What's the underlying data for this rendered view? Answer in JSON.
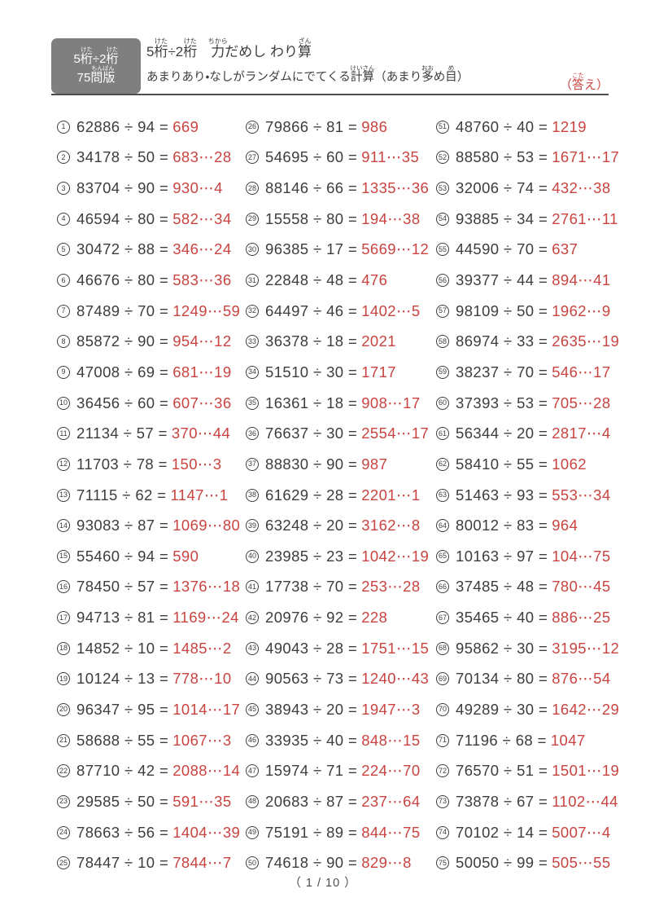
{
  "colors": {
    "answer_red": "#c94441",
    "text_dark": "#3d3d3d",
    "badge_gray": "#7f7f7f",
    "rule_gray": "#4d4d4d"
  },
  "signs": {
    "divide": "÷",
    "equals": "=",
    "remainder": "⋯"
  },
  "header": {
    "badge": {
      "line1_segments": [
        {
          "t": "5"
        },
        {
          "t": "桁",
          "r": "けた"
        },
        {
          "t": "÷2"
        },
        {
          "t": "桁",
          "r": "けた"
        }
      ],
      "line2_segments": [
        {
          "t": "75"
        },
        {
          "t": "問版",
          "r": "もんばん"
        }
      ]
    },
    "title_segments": [
      {
        "t": "5"
      },
      {
        "t": "桁",
        "r": "けた"
      },
      {
        "t": "÷2"
      },
      {
        "t": "桁",
        "r": "けた"
      },
      {
        "t": "　"
      },
      {
        "t": "力",
        "r": "ちから"
      },
      {
        "t": "だめし わり"
      },
      {
        "t": "算",
        "r": "ざん"
      }
    ],
    "subtitle_segments": [
      {
        "t": "あまりあり・なしがランダムにでてくる"
      },
      {
        "t": "計算",
        "r": "けいさん"
      },
      {
        "t": "（あまり"
      },
      {
        "t": "多",
        "r": "おお"
      },
      {
        "t": "め"
      },
      {
        "t": "目",
        "r": "め"
      },
      {
        "t": "）"
      }
    ],
    "answer_label_segments": [
      {
        "t": "（"
      },
      {
        "t": "答",
        "r": "こた"
      },
      {
        "t": "え）"
      }
    ]
  },
  "page": {
    "footer": "（ 1 / 10 ）"
  },
  "problems": [
    {
      "n": 1,
      "a": "62886",
      "b": "94",
      "q": "669",
      "r": null
    },
    {
      "n": 2,
      "a": "34178",
      "b": "50",
      "q": "683",
      "r": "28"
    },
    {
      "n": 3,
      "a": "83704",
      "b": "90",
      "q": "930",
      "r": "4"
    },
    {
      "n": 4,
      "a": "46594",
      "b": "80",
      "q": "582",
      "r": "34"
    },
    {
      "n": 5,
      "a": "30472",
      "b": "88",
      "q": "346",
      "r": "24"
    },
    {
      "n": 6,
      "a": "46676",
      "b": "80",
      "q": "583",
      "r": "36"
    },
    {
      "n": 7,
      "a": "87489",
      "b": "70",
      "q": "1249",
      "r": "59"
    },
    {
      "n": 8,
      "a": "85872",
      "b": "90",
      "q": "954",
      "r": "12"
    },
    {
      "n": 9,
      "a": "47008",
      "b": "69",
      "q": "681",
      "r": "19"
    },
    {
      "n": 10,
      "a": "36456",
      "b": "60",
      "q": "607",
      "r": "36"
    },
    {
      "n": 11,
      "a": "21134",
      "b": "57",
      "q": "370",
      "r": "44"
    },
    {
      "n": 12,
      "a": "11703",
      "b": "78",
      "q": "150",
      "r": "3"
    },
    {
      "n": 13,
      "a": "71115",
      "b": "62",
      "q": "1147",
      "r": "1"
    },
    {
      "n": 14,
      "a": "93083",
      "b": "87",
      "q": "1069",
      "r": "80"
    },
    {
      "n": 15,
      "a": "55460",
      "b": "94",
      "q": "590",
      "r": null
    },
    {
      "n": 16,
      "a": "78450",
      "b": "57",
      "q": "1376",
      "r": "18"
    },
    {
      "n": 17,
      "a": "94713",
      "b": "81",
      "q": "1169",
      "r": "24"
    },
    {
      "n": 18,
      "a": "14852",
      "b": "10",
      "q": "1485",
      "r": "2"
    },
    {
      "n": 19,
      "a": "10124",
      "b": "13",
      "q": "778",
      "r": "10"
    },
    {
      "n": 20,
      "a": "96347",
      "b": "95",
      "q": "1014",
      "r": "17"
    },
    {
      "n": 21,
      "a": "58688",
      "b": "55",
      "q": "1067",
      "r": "3"
    },
    {
      "n": 22,
      "a": "87710",
      "b": "42",
      "q": "2088",
      "r": "14"
    },
    {
      "n": 23,
      "a": "29585",
      "b": "50",
      "q": "591",
      "r": "35"
    },
    {
      "n": 24,
      "a": "78663",
      "b": "56",
      "q": "1404",
      "r": "39"
    },
    {
      "n": 25,
      "a": "78447",
      "b": "10",
      "q": "7844",
      "r": "7"
    },
    {
      "n": 26,
      "a": "79866",
      "b": "81",
      "q": "986",
      "r": null
    },
    {
      "n": 27,
      "a": "54695",
      "b": "60",
      "q": "911",
      "r": "35"
    },
    {
      "n": 28,
      "a": "88146",
      "b": "66",
      "q": "1335",
      "r": "36"
    },
    {
      "n": 29,
      "a": "15558",
      "b": "80",
      "q": "194",
      "r": "38"
    },
    {
      "n": 30,
      "a": "96385",
      "b": "17",
      "q": "5669",
      "r": "12"
    },
    {
      "n": 31,
      "a": "22848",
      "b": "48",
      "q": "476",
      "r": null
    },
    {
      "n": 32,
      "a": "64497",
      "b": "46",
      "q": "1402",
      "r": "5"
    },
    {
      "n": 33,
      "a": "36378",
      "b": "18",
      "q": "2021",
      "r": null
    },
    {
      "n": 34,
      "a": "51510",
      "b": "30",
      "q": "1717",
      "r": null
    },
    {
      "n": 35,
      "a": "16361",
      "b": "18",
      "q": "908",
      "r": "17"
    },
    {
      "n": 36,
      "a": "76637",
      "b": "30",
      "q": "2554",
      "r": "17"
    },
    {
      "n": 37,
      "a": "88830",
      "b": "90",
      "q": "987",
      "r": null
    },
    {
      "n": 38,
      "a": "61629",
      "b": "28",
      "q": "2201",
      "r": "1"
    },
    {
      "n": 39,
      "a": "63248",
      "b": "20",
      "q": "3162",
      "r": "8"
    },
    {
      "n": 40,
      "a": "23985",
      "b": "23",
      "q": "1042",
      "r": "19"
    },
    {
      "n": 41,
      "a": "17738",
      "b": "70",
      "q": "253",
      "r": "28"
    },
    {
      "n": 42,
      "a": "20976",
      "b": "92",
      "q": "228",
      "r": null
    },
    {
      "n": 43,
      "a": "49043",
      "b": "28",
      "q": "1751",
      "r": "15"
    },
    {
      "n": 44,
      "a": "90563",
      "b": "73",
      "q": "1240",
      "r": "43"
    },
    {
      "n": 45,
      "a": "38943",
      "b": "20",
      "q": "1947",
      "r": "3"
    },
    {
      "n": 46,
      "a": "33935",
      "b": "40",
      "q": "848",
      "r": "15"
    },
    {
      "n": 47,
      "a": "15974",
      "b": "71",
      "q": "224",
      "r": "70"
    },
    {
      "n": 48,
      "a": "20683",
      "b": "87",
      "q": "237",
      "r": "64"
    },
    {
      "n": 49,
      "a": "75191",
      "b": "89",
      "q": "844",
      "r": "75"
    },
    {
      "n": 50,
      "a": "74618",
      "b": "90",
      "q": "829",
      "r": "8"
    },
    {
      "n": 51,
      "a": "48760",
      "b": "40",
      "q": "1219",
      "r": null
    },
    {
      "n": 52,
      "a": "88580",
      "b": "53",
      "q": "1671",
      "r": "17"
    },
    {
      "n": 53,
      "a": "32006",
      "b": "74",
      "q": "432",
      "r": "38"
    },
    {
      "n": 54,
      "a": "93885",
      "b": "34",
      "q": "2761",
      "r": "11"
    },
    {
      "n": 55,
      "a": "44590",
      "b": "70",
      "q": "637",
      "r": null
    },
    {
      "n": 56,
      "a": "39377",
      "b": "44",
      "q": "894",
      "r": "41"
    },
    {
      "n": 57,
      "a": "98109",
      "b": "50",
      "q": "1962",
      "r": "9"
    },
    {
      "n": 58,
      "a": "86974",
      "b": "33",
      "q": "2635",
      "r": "19"
    },
    {
      "n": 59,
      "a": "38237",
      "b": "70",
      "q": "546",
      "r": "17"
    },
    {
      "n": 60,
      "a": "37393",
      "b": "53",
      "q": "705",
      "r": "28"
    },
    {
      "n": 61,
      "a": "56344",
      "b": "20",
      "q": "2817",
      "r": "4"
    },
    {
      "n": 62,
      "a": "58410",
      "b": "55",
      "q": "1062",
      "r": null
    },
    {
      "n": 63,
      "a": "51463",
      "b": "93",
      "q": "553",
      "r": "34"
    },
    {
      "n": 64,
      "a": "80012",
      "b": "83",
      "q": "964",
      "r": null
    },
    {
      "n": 65,
      "a": "10163",
      "b": "97",
      "q": "104",
      "r": "75"
    },
    {
      "n": 66,
      "a": "37485",
      "b": "48",
      "q": "780",
      "r": "45"
    },
    {
      "n": 67,
      "a": "35465",
      "b": "40",
      "q": "886",
      "r": "25"
    },
    {
      "n": 68,
      "a": "95862",
      "b": "30",
      "q": "3195",
      "r": "12"
    },
    {
      "n": 69,
      "a": "70134",
      "b": "80",
      "q": "876",
      "r": "54"
    },
    {
      "n": 70,
      "a": "49289",
      "b": "30",
      "q": "1642",
      "r": "29"
    },
    {
      "n": 71,
      "a": "71196",
      "b": "68",
      "q": "1047",
      "r": null
    },
    {
      "n": 72,
      "a": "76570",
      "b": "51",
      "q": "1501",
      "r": "19"
    },
    {
      "n": 73,
      "a": "73878",
      "b": "67",
      "q": "1102",
      "r": "44"
    },
    {
      "n": 74,
      "a": "70102",
      "b": "14",
      "q": "5007",
      "r": "4"
    },
    {
      "n": 75,
      "a": "50050",
      "b": "99",
      "q": "505",
      "r": "55"
    }
  ]
}
